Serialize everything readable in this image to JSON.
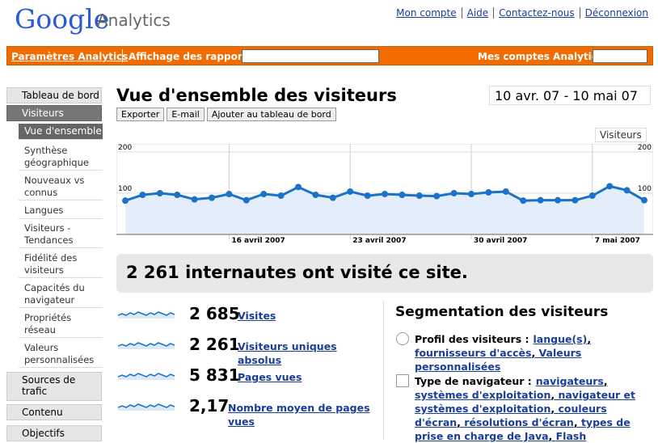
{
  "header": {
    "logo": "Google",
    "product": "Analytics",
    "links": [
      "Mon compte",
      "Aide",
      "Contactez-nous",
      "Déconnexion"
    ]
  },
  "toolbar": {
    "settings": "Paramètres Analytics",
    "reports": "Affichage des rapports :",
    "accounts": "Mes comptes Analytics :"
  },
  "sidebar": {
    "top": [
      {
        "label": "Tableau de bord"
      },
      {
        "label": "Visiteurs"
      }
    ],
    "sub": [
      {
        "label": "Vue d'ensemble"
      },
      {
        "label": "Synthèse géographique"
      },
      {
        "label": "Nouveaux vs connus"
      },
      {
        "label": "Langues"
      },
      {
        "label": "Visiteurs - Tendances"
      },
      {
        "label": "Fidélité des visiteurs"
      },
      {
        "label": "Capacités du navigateur"
      },
      {
        "label": "Propriétés réseau"
      },
      {
        "label": "Valeurs personnalisées"
      }
    ],
    "bottom": [
      {
        "label": "Sources de trafic"
      },
      {
        "label": "Contenu"
      },
      {
        "label": "Objectifs"
      }
    ]
  },
  "main": {
    "title": "Vue d'ensemble des visiteurs",
    "date_range": "10 avr. 07 - 10 mai 07",
    "buttons": [
      "Exporter",
      "E-mail",
      "Ajouter au tableau de bord"
    ],
    "metric_select": "Visiteurs",
    "summary": "2 261 internautes ont visité ce site.",
    "stats": [
      {
        "value": "2 685",
        "label": "Visites"
      },
      {
        "value": "2 261",
        "label": "Visiteurs uniques absolus"
      },
      {
        "value": "5 831",
        "label": "Pages vues"
      },
      {
        "value": "2,17",
        "label": "Nombre moyen de pages vues"
      }
    ],
    "segmentation": {
      "title": "Segmentation des visiteurs",
      "groups": [
        {
          "label": "Profil des visiteurs :",
          "links": [
            "langue(s)",
            "fournisseurs d'accès",
            "Valeurs personnalisées"
          ]
        },
        {
          "label": "Type de navigateur :",
          "links": [
            "navigateurs",
            "systèmes d'exploitation",
            "navigateur et systèmes d'exploitation",
            "couleurs d'écran",
            "résolutions d'écran",
            "types de prise en charge de Java",
            "Flash"
          ]
        }
      ]
    }
  },
  "chart_data": {
    "type": "line",
    "categories": [
      null,
      null,
      null,
      null,
      null,
      null,
      "16 avril 2007",
      null,
      null,
      null,
      null,
      null,
      null,
      "23 avril 2007",
      null,
      null,
      null,
      null,
      null,
      null,
      "30 avril 2007",
      null,
      null,
      null,
      null,
      null,
      null,
      "7 mai 2007",
      null,
      null,
      null
    ],
    "values": [
      82,
      96,
      100,
      96,
      85,
      89,
      98,
      83,
      98,
      94,
      115,
      96,
      89,
      104,
      94,
      98,
      96,
      94,
      93,
      100,
      98,
      102,
      104,
      82,
      83,
      83,
      83,
      94,
      117,
      107,
      83
    ],
    "color": "#1c72c8",
    "ylim": [
      0,
      200
    ],
    "yticks": [
      100,
      200
    ],
    "grid": true
  }
}
